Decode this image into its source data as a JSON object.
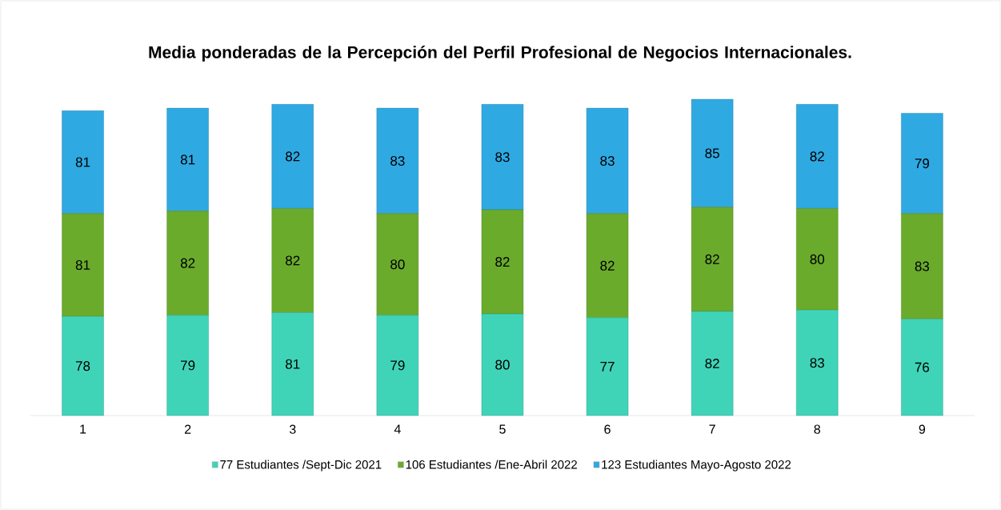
{
  "chart_data": {
    "type": "bar",
    "stacked": true,
    "data_labels": true,
    "legend": "bottom",
    "title": "Media ponderadas de la Percepción del Perfil Profesional de Negocios Internacionales.",
    "categories": [
      "1",
      "2",
      "3",
      "4",
      "5",
      "6",
      "7",
      "8",
      "9"
    ],
    "series": [
      {
        "name": "77 Estudiantes  /Sept-Dic 2021",
        "color": "#3fd4b8",
        "values": [
          78,
          79,
          81,
          79,
          80,
          77,
          82,
          83,
          76
        ]
      },
      {
        "name": "106 Estudiantes  /Ene-Abril  2022",
        "color": "#6aab2c",
        "values": [
          81,
          82,
          82,
          80,
          82,
          82,
          82,
          80,
          83
        ]
      },
      {
        "name": "123 Estudiantes  Mayo-Agosto 2022",
        "color": "#2fa9e2",
        "values": [
          81,
          81,
          82,
          83,
          83,
          83,
          85,
          82,
          79
        ]
      }
    ]
  }
}
